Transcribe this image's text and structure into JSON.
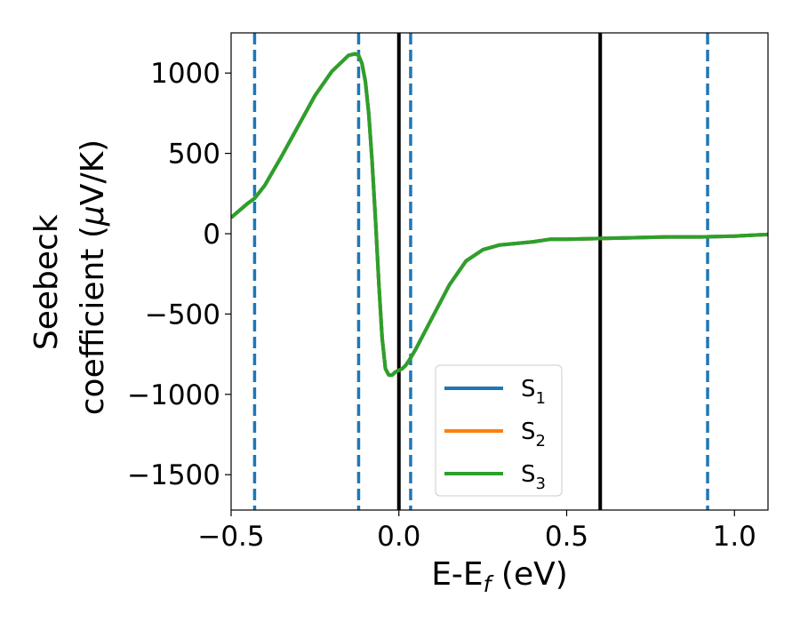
{
  "chart_data": {
    "type": "line",
    "xlabel": {
      "main": "E-E",
      "sub": "f",
      "unit": " (eV)"
    },
    "ylabel": {
      "line1": "Seebeck",
      "line2": "coefficient  (",
      "mu": "μ",
      "unit": "V/K)"
    },
    "xlim": [
      -0.5,
      1.1
    ],
    "ylim": [
      -1720,
      1250
    ],
    "x_ticks": [
      {
        "value": -0.5,
        "label": "−0.5"
      },
      {
        "value": 0.0,
        "label": "0.0"
      },
      {
        "value": 0.5,
        "label": "0.5"
      },
      {
        "value": 1.0,
        "label": "1.0"
      }
    ],
    "y_ticks": [
      {
        "value": 1000,
        "label": "1000"
      },
      {
        "value": 500,
        "label": "500"
      },
      {
        "value": 0,
        "label": "0"
      },
      {
        "value": -500,
        "label": "−500"
      },
      {
        "value": -1000,
        "label": "−1000"
      },
      {
        "value": -1500,
        "label": "−1500"
      }
    ],
    "grid": false,
    "legend_position": "lower-center",
    "series": [
      {
        "name": "S",
        "sub": "1",
        "color": "#1f77b4",
        "x": [
          -0.5,
          -0.45,
          -0.43,
          -0.4,
          -0.35,
          -0.3,
          -0.25,
          -0.2,
          -0.15,
          -0.13,
          -0.12,
          -0.11,
          -0.1,
          -0.09,
          -0.08,
          -0.07,
          -0.06,
          -0.05,
          -0.04,
          -0.03,
          -0.02,
          -0.01,
          0.0,
          0.01,
          0.02,
          0.03,
          0.05,
          0.1,
          0.15,
          0.2,
          0.25,
          0.3,
          0.4,
          0.45,
          0.5,
          0.6,
          0.7,
          0.8,
          0.9,
          1.0,
          1.05,
          1.1
        ],
        "y": [
          100,
          190,
          220,
          300,
          480,
          670,
          860,
          1010,
          1110,
          1120,
          1110,
          1060,
          950,
          750,
          460,
          100,
          -300,
          -650,
          -840,
          -880,
          -880,
          -860,
          -850,
          -840,
          -820,
          -790,
          -720,
          -520,
          -320,
          -170,
          -100,
          -70,
          -50,
          -35,
          -35,
          -30,
          -25,
          -20,
          -20,
          -15,
          -10,
          -5
        ]
      },
      {
        "name": "S",
        "sub": "2",
        "color": "#ff7f0e",
        "x": [
          -0.5,
          -0.45,
          -0.43,
          -0.4,
          -0.35,
          -0.3,
          -0.25,
          -0.2,
          -0.15,
          -0.13,
          -0.12,
          -0.11,
          -0.1,
          -0.09,
          -0.08,
          -0.07,
          -0.06,
          -0.05,
          -0.04,
          -0.03,
          -0.02,
          -0.01,
          0.0,
          0.01,
          0.02,
          0.03,
          0.05,
          0.1,
          0.15,
          0.2,
          0.25,
          0.3,
          0.4,
          0.45,
          0.5,
          0.6,
          0.7,
          0.8,
          0.9,
          1.0,
          1.05,
          1.1
        ],
        "y": [
          100,
          190,
          220,
          300,
          480,
          670,
          860,
          1010,
          1110,
          1120,
          1110,
          1060,
          950,
          750,
          460,
          100,
          -300,
          -650,
          -840,
          -880,
          -880,
          -860,
          -850,
          -840,
          -820,
          -790,
          -720,
          -520,
          -320,
          -170,
          -100,
          -70,
          -50,
          -35,
          -35,
          -30,
          -25,
          -20,
          -20,
          -15,
          -10,
          -5
        ]
      },
      {
        "name": "S",
        "sub": "3",
        "color": "#2ca02c",
        "x": [
          -0.5,
          -0.45,
          -0.43,
          -0.4,
          -0.35,
          -0.3,
          -0.25,
          -0.2,
          -0.15,
          -0.13,
          -0.12,
          -0.11,
          -0.1,
          -0.09,
          -0.08,
          -0.07,
          -0.06,
          -0.05,
          -0.04,
          -0.03,
          -0.02,
          -0.01,
          0.0,
          0.01,
          0.02,
          0.03,
          0.05,
          0.1,
          0.15,
          0.2,
          0.25,
          0.3,
          0.4,
          0.45,
          0.5,
          0.6,
          0.7,
          0.8,
          0.9,
          1.0,
          1.05,
          1.1
        ],
        "y": [
          100,
          190,
          220,
          300,
          480,
          670,
          860,
          1010,
          1110,
          1120,
          1110,
          1060,
          950,
          750,
          460,
          100,
          -300,
          -650,
          -840,
          -880,
          -880,
          -860,
          -850,
          -840,
          -820,
          -790,
          -720,
          -520,
          -320,
          -170,
          -100,
          -70,
          -50,
          -35,
          -35,
          -30,
          -25,
          -20,
          -20,
          -15,
          -10,
          -5
        ]
      }
    ],
    "vertical_lines": [
      {
        "x": -0.43,
        "style": "dashed",
        "color": "#1f77b4"
      },
      {
        "x": -0.12,
        "style": "dashed",
        "color": "#1f77b4"
      },
      {
        "x": 0.035,
        "style": "dashed",
        "color": "#1f77b4"
      },
      {
        "x": 0.92,
        "style": "dashed",
        "color": "#1f77b4"
      },
      {
        "x": 0.0,
        "style": "solid",
        "color": "#000000"
      },
      {
        "x": 0.6,
        "style": "solid",
        "color": "#000000"
      }
    ]
  }
}
